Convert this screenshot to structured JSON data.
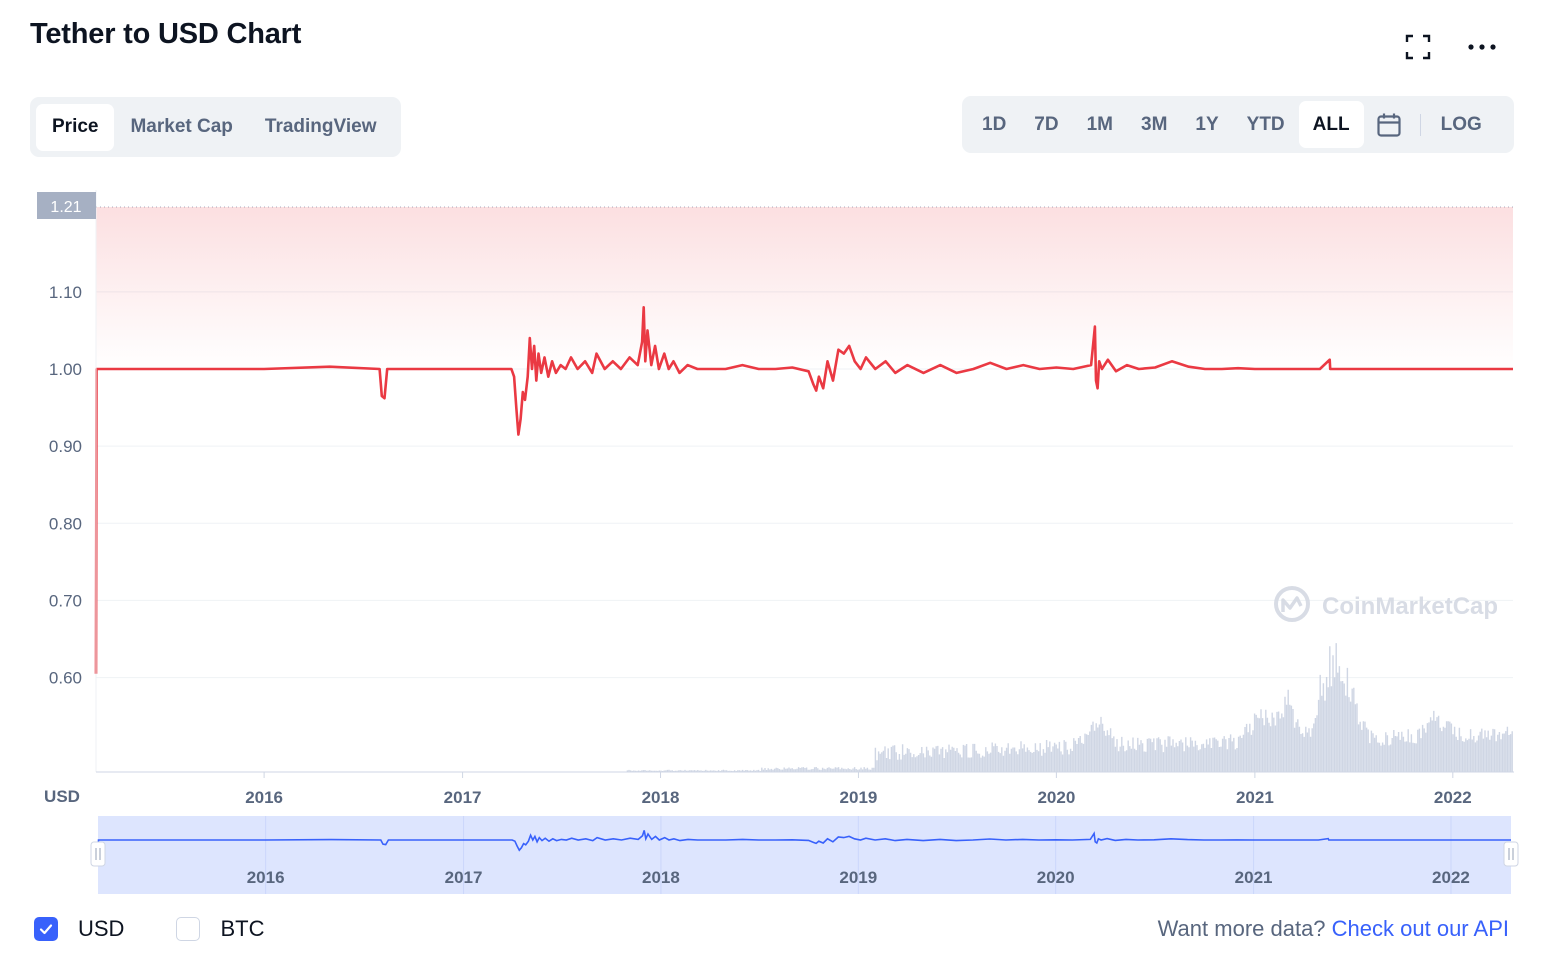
{
  "header": {
    "title": "Tether to USD Chart",
    "fullscreen_icon": "expand-icon",
    "more_icon": "more-horizontal-icon"
  },
  "tabs": [
    {
      "label": "Price",
      "active": true
    },
    {
      "label": "Market Cap",
      "active": false
    },
    {
      "label": "TradingView",
      "active": false
    }
  ],
  "ranges": [
    {
      "label": "1D",
      "active": false
    },
    {
      "label": "7D",
      "active": false
    },
    {
      "label": "1M",
      "active": false
    },
    {
      "label": "3M",
      "active": false
    },
    {
      "label": "1Y",
      "active": false
    },
    {
      "label": "YTD",
      "active": false
    },
    {
      "label": "ALL",
      "active": true
    }
  ],
  "calendar_icon": "calendar-icon",
  "log_label": "LOG",
  "watermark": "CoinMarketCap",
  "colors": {
    "price_line": "#ea3943",
    "area_top": "#ea3943",
    "volume": "#cfd6e4",
    "navigator_bg": "#dde5fe",
    "navigator_line": "#3861fb",
    "accent": "#3861fb"
  },
  "chart_data": {
    "type": "line",
    "title": "Tether to USD Chart",
    "currency_label": "USD",
    "current_value_label": "1.21",
    "y_ticks": [
      "1.10",
      "1.00",
      "0.90",
      "0.80",
      "0.70",
      "0.60"
    ],
    "ylim": [
      0.6,
      1.21
    ],
    "x_ticks": [
      "2016",
      "2017",
      "2018",
      "2019",
      "2020",
      "2021",
      "2022"
    ],
    "xlim": [
      "2015-02-25",
      "2022-04-22"
    ],
    "grid": true,
    "series": [
      {
        "x": [
          "2015-02-25",
          "2015-02-26",
          "2015-03-05",
          "2015-06-01",
          "2016-01-01",
          "2016-05-01",
          "2016-08-01",
          "2016-08-05",
          "2016-08-10",
          "2016-08-15",
          "2017-01-01",
          "2017-04-01",
          "2017-04-06",
          "2017-04-10",
          "2017-04-14",
          "2017-04-18",
          "2017-04-22",
          "2017-04-26",
          "2017-05-01",
          "2017-05-05",
          "2017-05-09",
          "2017-05-13",
          "2017-05-17",
          "2017-05-21",
          "2017-05-26",
          "2017-06-01",
          "2017-06-08",
          "2017-06-15",
          "2017-06-22",
          "2017-07-01",
          "2017-07-10",
          "2017-07-20",
          "2017-08-01",
          "2017-08-15",
          "2017-08-28",
          "2017-09-05",
          "2017-09-20",
          "2017-10-05",
          "2017-10-20",
          "2017-11-05",
          "2017-11-20",
          "2017-11-28",
          "2017-12-01",
          "2017-12-04",
          "2017-12-08",
          "2017-12-15",
          "2017-12-22",
          "2017-12-29",
          "2018-01-08",
          "2018-01-16",
          "2018-01-25",
          "2018-02-05",
          "2018-02-20",
          "2018-03-10",
          "2018-04-01",
          "2018-05-01",
          "2018-06-01",
          "2018-07-01",
          "2018-08-01",
          "2018-09-01",
          "2018-10-01",
          "2018-10-10",
          "2018-10-15",
          "2018-10-20",
          "2018-10-28",
          "2018-11-05",
          "2018-11-15",
          "2018-11-25",
          "2018-12-05",
          "2018-12-15",
          "2018-12-25",
          "2019-01-05",
          "2019-01-15",
          "2019-02-01",
          "2019-02-20",
          "2019-03-10",
          "2019-04-01",
          "2019-05-01",
          "2019-06-01",
          "2019-07-01",
          "2019-08-01",
          "2019-09-01",
          "2019-10-01",
          "2019-11-01",
          "2019-12-01",
          "2020-01-01",
          "2020-02-01",
          "2020-03-05",
          "2020-03-12",
          "2020-03-14",
          "2020-03-17",
          "2020-03-20",
          "2020-03-25",
          "2020-04-05",
          "2020-04-20",
          "2020-05-10",
          "2020-06-01",
          "2020-07-01",
          "2020-08-01",
          "2020-09-01",
          "2020-10-01",
          "2020-11-01",
          "2020-12-01",
          "2021-01-01",
          "2021-03-01",
          "2021-05-01",
          "2021-05-19",
          "2021-05-20",
          "2021-06-01",
          "2021-08-01",
          "2021-10-01",
          "2021-12-01",
          "2022-02-01",
          "2022-04-22"
        ],
        "y": [
          0.605,
          1.0,
          1.0,
          1.0,
          1.0,
          1.003,
          1.0,
          0.965,
          0.962,
          1.0,
          1.0,
          1.0,
          0.99,
          0.95,
          0.915,
          0.935,
          0.97,
          0.96,
          0.99,
          1.04,
          1.0,
          1.03,
          0.985,
          1.02,
          0.995,
          1.015,
          0.99,
          1.01,
          0.995,
          1.005,
          1.0,
          1.015,
          1.0,
          1.01,
          0.995,
          1.02,
          1.0,
          1.01,
          1.0,
          1.015,
          1.005,
          1.035,
          1.08,
          1.01,
          1.05,
          1.005,
          1.03,
          1.0,
          1.02,
          1.0,
          1.01,
          0.995,
          1.005,
          1.0,
          1.0,
          1.0,
          1.005,
          1.0,
          1.0,
          1.002,
          0.997,
          0.98,
          0.972,
          0.99,
          0.975,
          1.01,
          0.985,
          1.025,
          1.02,
          1.03,
          1.01,
          1.0,
          1.015,
          1.0,
          1.01,
          0.995,
          1.005,
          0.995,
          1.005,
          0.995,
          1.0,
          1.008,
          1.0,
          1.005,
          1.0,
          1.002,
          1.0,
          1.005,
          1.055,
          0.985,
          0.975,
          1.01,
          1.0,
          1.012,
          0.997,
          1.005,
          1.0,
          1.002,
          1.01,
          1.003,
          1.0,
          1.0,
          1.001,
          1.0,
          1.0,
          1.0,
          1.012,
          1.0,
          1.0,
          1.0,
          1.0,
          1.0,
          1.0,
          1.0
        ]
      }
    ],
    "volume_note": "volume bars shown at bottom, no scale printed"
  },
  "navigator": {
    "x_ticks": [
      "2016",
      "2017",
      "2018",
      "2019",
      "2020",
      "2021",
      "2022"
    ]
  },
  "legend": [
    {
      "label": "USD",
      "checked": true
    },
    {
      "label": "BTC",
      "checked": false
    }
  ],
  "footer": {
    "api_prompt": "Want more data?",
    "api_link": "Check out our API"
  }
}
